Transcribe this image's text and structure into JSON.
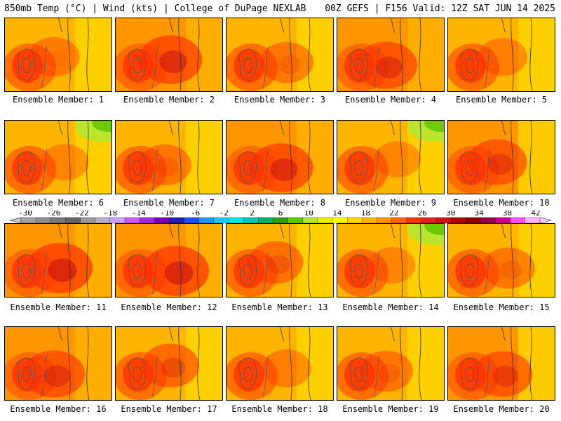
{
  "header": {
    "left": "850mb Temp (°C) | Wind (kts) | College of DuPage NEXLAB",
    "right": "00Z GEFS | F156 Valid: 12Z SAT JUN 14 2025"
  },
  "colorbar": {
    "labels": [
      "-30",
      "-26",
      "-22",
      "-18",
      "-14",
      "-10",
      "-6",
      "-2",
      "2",
      "6",
      "10",
      "14",
      "18",
      "22",
      "26",
      "30",
      "34",
      "38",
      "42"
    ],
    "colors": [
      "#a0a0a0",
      "#8c8c8c",
      "#787878",
      "#646464",
      "#9a9a9a",
      "#b4b4c8",
      "#c8a0ff",
      "#c85aff",
      "#a028dc",
      "#7800b4",
      "#1e1eb4",
      "#1e50ff",
      "#1e96ff",
      "#1ec8ff",
      "#00e6e6",
      "#00c8b4",
      "#00b464",
      "#32a000",
      "#64c800",
      "#b4e632",
      "#e6f000",
      "#ffff00",
      "#ffd700",
      "#ffb400",
      "#ff9600",
      "#ff6400",
      "#ff3200",
      "#e61e1e",
      "#c81414",
      "#aa0a0a",
      "#8c0000",
      "#960050",
      "#c80096",
      "#ff50ff",
      "#ffb4ff"
    ]
  },
  "members": [
    {
      "label": "Ensemble Member: 1",
      "heat": 0.55
    },
    {
      "label": "Ensemble Member: 2",
      "heat": 0.85
    },
    {
      "label": "Ensemble Member: 3",
      "heat": 0.6
    },
    {
      "label": "Ensemble Member: 4",
      "heat": 0.8
    },
    {
      "label": "Ensemble Member: 5",
      "heat": 0.5
    },
    {
      "label": "Ensemble Member: 6",
      "heat": 0.45
    },
    {
      "label": "Ensemble Member: 7",
      "heat": 0.6
    },
    {
      "label": "Ensemble Member: 8",
      "heat": 0.85
    },
    {
      "label": "Ensemble Member: 9",
      "heat": 0.45
    },
    {
      "label": "Ensemble Member: 10",
      "heat": 0.75
    },
    {
      "label": "Ensemble Member: 11",
      "heat": 0.9
    },
    {
      "label": "Ensemble Member: 12",
      "heat": 0.9
    },
    {
      "label": "Ensemble Member: 13",
      "heat": 0.65
    },
    {
      "label": "Ensemble Member: 14",
      "heat": 0.45
    },
    {
      "label": "Ensemble Member: 15",
      "heat": 0.6
    },
    {
      "label": "Ensemble Member: 16",
      "heat": 0.8
    },
    {
      "label": "Ensemble Member: 17",
      "heat": 0.7
    },
    {
      "label": "Ensemble Member: 18",
      "heat": 0.5
    },
    {
      "label": "Ensemble Member: 19",
      "heat": 0.6
    },
    {
      "label": "Ensemble Member: 20",
      "heat": 0.75
    }
  ]
}
